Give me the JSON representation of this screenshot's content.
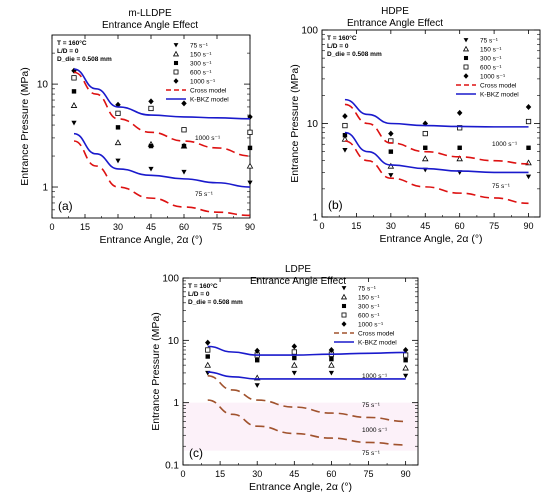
{
  "figure": {
    "panels": [
      {
        "title": "m-LLDPE",
        "subtitle": "Entrance Angle Effect",
        "panel_label": "(a)",
        "conditions": [
          "T = 160°C",
          "L/D = 0",
          "D_die = 0.508 mm"
        ],
        "legend_items": [
          {
            "marker": "triangle-down-filled",
            "label": "75 s⁻¹"
          },
          {
            "marker": "triangle-up-open",
            "label": "150 s⁻¹"
          },
          {
            "marker": "square-filled",
            "label": "300 s⁻¹"
          },
          {
            "marker": "square-open",
            "label": "600 s⁻¹"
          },
          {
            "marker": "diamond-filled",
            "label": "1000 s⁻¹"
          },
          {
            "marker": "dashed-red",
            "label": "Cross model"
          },
          {
            "marker": "solid-blue",
            "label": "K-BKZ model"
          }
        ],
        "curve_labels": [
          "1000 s⁻¹",
          "75 s⁻¹"
        ]
      },
      {
        "title": "HDPE",
        "subtitle": "Entrance Angle Effect",
        "panel_label": "(b)",
        "conditions": [
          "T = 160°C",
          "L/D = 0",
          "D_die = 0.508 mm"
        ],
        "legend_items": [
          {
            "marker": "triangle-down-filled",
            "label": "75 s⁻¹"
          },
          {
            "marker": "triangle-up-open",
            "label": "150 s⁻¹"
          },
          {
            "marker": "square-filled",
            "label": "300 s⁻¹"
          },
          {
            "marker": "square-open",
            "label": "600 s⁻¹"
          },
          {
            "marker": "diamond-filled",
            "label": "1000 s⁻¹"
          },
          {
            "marker": "dashed-red",
            "label": "Cross model"
          },
          {
            "marker": "solid-blue",
            "label": "K-BKZ model"
          }
        ],
        "curve_labels": [
          "1000 s⁻¹",
          "75 s⁻¹"
        ]
      },
      {
        "title": "LDPE",
        "subtitle": "Entrance Angle Effect",
        "panel_label": "(c)",
        "conditions": [
          "T = 160°C",
          "L/D = 0",
          "D_die = 0.508 mm"
        ],
        "legend_items": [
          {
            "marker": "triangle-down-filled",
            "label": "75 s⁻¹"
          },
          {
            "marker": "triangle-up-open",
            "label": "150 s⁻¹"
          },
          {
            "marker": "square-filled",
            "label": "300 s⁻¹"
          },
          {
            "marker": "square-open",
            "label": "600 s⁻¹"
          },
          {
            "marker": "diamond-filled",
            "label": "1000 s⁻¹"
          },
          {
            "marker": "dashed-red",
            "label": "Cross model"
          },
          {
            "marker": "solid-blue",
            "label": "K-BKZ model"
          }
        ],
        "curve_labels": [
          "1000 s⁻¹",
          "75 s⁻¹",
          "1000 s⁻¹",
          "75 s⁻¹"
        ]
      }
    ]
  },
  "colors": {
    "cross_model": "#dd1111",
    "cross_model_ldpe": "#a0522d",
    "kbkz_model": "#1a1acc",
    "ldpe_highlight": "#f6d6ee",
    "markers": "#000000"
  },
  "chart_data": [
    {
      "type": "scatter",
      "xlabel": "Entrance Angle, 2α (°)",
      "ylabel": "Entrance Pressure (MPa)",
      "y_scale": "log",
      "xlim": [
        0,
        90
      ],
      "ylim": [
        0.5,
        30
      ],
      "x_ticks": [
        0,
        15,
        30,
        45,
        60,
        75,
        90
      ],
      "y_ticks": [
        {
          "value": 1,
          "label": "1"
        },
        {
          "value": 10,
          "label": "10"
        }
      ],
      "grid": false,
      "legend_position": "top-right",
      "series": [
        {
          "name": "75 s⁻¹",
          "kind": "points",
          "marker": "triangle-down-filled",
          "x": [
            10,
            30,
            45,
            60,
            90
          ],
          "y": [
            4.2,
            1.8,
            1.5,
            1.4,
            1.1
          ]
        },
        {
          "name": "150 s⁻¹",
          "kind": "points",
          "marker": "triangle-up-open",
          "x": [
            10,
            30,
            45,
            60,
            90
          ],
          "y": [
            6.2,
            2.7,
            2.6,
            2.5,
            1.6
          ]
        },
        {
          "name": "300 s⁻¹",
          "kind": "points",
          "marker": "square-filled",
          "x": [
            10,
            30,
            45,
            60,
            90
          ],
          "y": [
            8.5,
            3.8,
            2.5,
            2.5,
            2.4
          ]
        },
        {
          "name": "600 s⁻¹",
          "kind": "points",
          "marker": "square-open",
          "x": [
            10,
            30,
            45,
            60,
            90
          ],
          "y": [
            11.5,
            5.2,
            5.8,
            3.6,
            3.4
          ]
        },
        {
          "name": "1000 s⁻¹",
          "kind": "points",
          "marker": "diamond-filled",
          "x": [
            10,
            30,
            45,
            60,
            90
          ],
          "y": [
            13.5,
            6.3,
            6.8,
            6.5,
            4.8
          ]
        },
        {
          "name": "Cross model",
          "kind": "line",
          "style": "dashed",
          "color": "#dd1111",
          "x": [
            10,
            20,
            30,
            45,
            60,
            75,
            90
          ],
          "y": [
            13.0,
            8.0,
            4.6,
            3.4,
            2.8,
            2.4,
            2.0
          ]
        },
        {
          "name": "Cross model",
          "kind": "line",
          "style": "dashed",
          "color": "#dd1111",
          "x": [
            10,
            20,
            30,
            45,
            60,
            75,
            90
          ],
          "y": [
            2.8,
            1.6,
            1.0,
            0.78,
            0.64,
            0.57,
            0.53
          ]
        },
        {
          "name": "K-BKZ model",
          "kind": "line",
          "style": "solid",
          "color": "#1a1acc",
          "x": [
            10,
            20,
            30,
            45,
            60,
            75,
            90
          ],
          "y": [
            14.0,
            9.0,
            6.0,
            5.0,
            4.8,
            4.7,
            4.6
          ]
        },
        {
          "name": "K-BKZ model",
          "kind": "line",
          "style": "solid",
          "color": "#1a1acc",
          "x": [
            10,
            20,
            30,
            45,
            60,
            75,
            90
          ],
          "y": [
            3.3,
            2.1,
            1.5,
            1.3,
            1.2,
            1.1,
            1.0
          ]
        }
      ]
    },
    {
      "type": "scatter",
      "xlabel": "Entrance Angle, 2α (°)",
      "ylabel": "Entrance Pressure (MPa)",
      "y_scale": "log",
      "xlim": [
        0,
        95
      ],
      "ylim": [
        1,
        100
      ],
      "x_ticks": [
        0,
        15,
        30,
        45,
        60,
        75,
        90
      ],
      "y_ticks": [
        {
          "value": 1,
          "label": "1"
        },
        {
          "value": 10,
          "label": "10"
        },
        {
          "value": 100,
          "label": "100"
        }
      ],
      "grid": false,
      "legend_position": "top-right",
      "series": [
        {
          "name": "75 s⁻¹",
          "kind": "points",
          "marker": "triangle-down-filled",
          "x": [
            10,
            30,
            45,
            60,
            90
          ],
          "y": [
            5.2,
            2.8,
            3.2,
            3.0,
            2.7
          ]
        },
        {
          "name": "150 s⁻¹",
          "kind": "points",
          "marker": "triangle-up-open",
          "x": [
            10,
            30,
            45,
            60,
            90
          ],
          "y": [
            6.8,
            3.5,
            4.2,
            4.2,
            3.8
          ]
        },
        {
          "name": "300 s⁻¹",
          "kind": "points",
          "marker": "square-filled",
          "x": [
            10,
            30,
            45,
            60,
            90
          ],
          "y": [
            7.5,
            5.0,
            5.5,
            5.5,
            5.5
          ]
        },
        {
          "name": "600 s⁻¹",
          "kind": "points",
          "marker": "square-open",
          "x": [
            10,
            30,
            45,
            60,
            90
          ],
          "y": [
            9.5,
            6.5,
            7.8,
            9.0,
            10.5
          ]
        },
        {
          "name": "1000 s⁻¹",
          "kind": "points",
          "marker": "diamond-filled",
          "x": [
            10,
            30,
            45,
            60,
            90
          ],
          "y": [
            12.0,
            7.8,
            10.0,
            13.0,
            15.0
          ]
        },
        {
          "name": "Cross model",
          "kind": "line",
          "style": "dashed",
          "color": "#dd1111",
          "x": [
            10,
            20,
            30,
            45,
            60,
            75,
            90
          ],
          "y": [
            16.0,
            10.0,
            6.2,
            5.0,
            4.4,
            4.0,
            3.7
          ]
        },
        {
          "name": "Cross model",
          "kind": "line",
          "style": "dashed",
          "color": "#dd1111",
          "x": [
            10,
            20,
            30,
            45,
            60,
            75,
            90
          ],
          "y": [
            6.5,
            4.0,
            2.6,
            2.1,
            1.8,
            1.6,
            1.4
          ]
        },
        {
          "name": "K-BKZ model",
          "kind": "line",
          "style": "solid",
          "color": "#1a1acc",
          "x": [
            10,
            20,
            30,
            45,
            60,
            75,
            90
          ],
          "y": [
            18.0,
            12.5,
            10.0,
            9.5,
            9.3,
            9.2,
            9.2
          ]
        },
        {
          "name": "K-BKZ model",
          "kind": "line",
          "style": "solid",
          "color": "#1a1acc",
          "x": [
            10,
            20,
            30,
            45,
            60,
            75,
            90
          ],
          "y": [
            8.0,
            5.0,
            3.6,
            3.3,
            3.1,
            3.0,
            3.0
          ]
        }
      ]
    },
    {
      "type": "scatter",
      "xlabel": "Entrance Angle, 2α (°)",
      "ylabel": "Entrance Pressure (MPa)",
      "y_scale": "log",
      "xlim": [
        0,
        95
      ],
      "ylim": [
        0.1,
        100
      ],
      "x_ticks": [
        0,
        15,
        30,
        45,
        60,
        75,
        90
      ],
      "y_ticks": [
        {
          "value": 0.1,
          "label": "0.1"
        },
        {
          "value": 1,
          "label": "1"
        },
        {
          "value": 10,
          "label": "10"
        },
        {
          "value": 100,
          "label": "100"
        }
      ],
      "grid": false,
      "legend_position": "top-right",
      "series": [
        {
          "name": "75 s⁻¹",
          "kind": "points",
          "marker": "triangle-down-filled",
          "x": [
            10,
            30,
            45,
            60,
            90
          ],
          "y": [
            3.0,
            1.9,
            3.0,
            3.0,
            2.7
          ]
        },
        {
          "name": "150 s⁻¹",
          "kind": "points",
          "marker": "triangle-up-open",
          "x": [
            10,
            30,
            45,
            60,
            90
          ],
          "y": [
            4.0,
            2.5,
            4.0,
            4.0,
            3.6
          ]
        },
        {
          "name": "300 s⁻¹",
          "kind": "points",
          "marker": "square-filled",
          "x": [
            10,
            30,
            45,
            60,
            90
          ],
          "y": [
            5.5,
            4.8,
            5.2,
            5.0,
            4.8
          ]
        },
        {
          "name": "600 s⁻¹",
          "kind": "points",
          "marker": "square-open",
          "x": [
            10,
            30,
            45,
            60,
            90
          ],
          "y": [
            7.0,
            5.8,
            6.5,
            6.0,
            5.8
          ]
        },
        {
          "name": "1000 s⁻¹",
          "kind": "points",
          "marker": "diamond-filled",
          "x": [
            10,
            30,
            45,
            60,
            90
          ],
          "y": [
            9.2,
            6.8,
            8.0,
            7.0,
            7.0
          ]
        },
        {
          "name": "K-BKZ model",
          "kind": "line",
          "style": "solid",
          "color": "#1a1acc",
          "x": [
            10,
            20,
            30,
            45,
            60,
            75,
            90
          ],
          "y": [
            8.0,
            6.5,
            5.8,
            5.8,
            6.0,
            6.2,
            6.4
          ]
        },
        {
          "name": "K-BKZ model",
          "kind": "line",
          "style": "solid",
          "color": "#1a1acc",
          "x": [
            10,
            20,
            30,
            45,
            60,
            75,
            90
          ],
          "y": [
            3.1,
            2.6,
            2.4,
            2.4,
            2.4,
            2.4,
            2.4
          ]
        },
        {
          "name": "Cross model",
          "kind": "line",
          "style": "dashed",
          "color": "#a0522d",
          "x": [
            10,
            20,
            30,
            45,
            60,
            75,
            90
          ],
          "y": [
            2.7,
            1.6,
            1.1,
            0.85,
            0.68,
            0.58,
            0.5
          ]
        },
        {
          "name": "Cross model",
          "kind": "line",
          "style": "dashed",
          "color": "#a0522d",
          "x": [
            10,
            20,
            30,
            45,
            60,
            75,
            90
          ],
          "y": [
            1.1,
            0.65,
            0.42,
            0.32,
            0.27,
            0.23,
            0.21
          ]
        }
      ]
    }
  ]
}
